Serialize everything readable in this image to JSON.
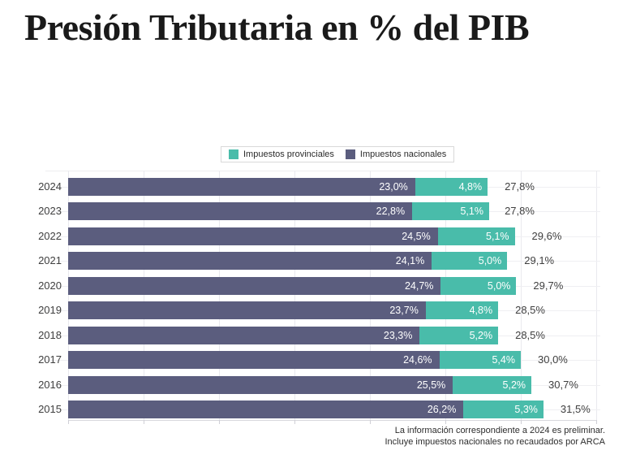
{
  "title": "Presión Tributaria en % del PIB",
  "legend": {
    "items": [
      {
        "label": "Impuestos provinciales",
        "color": "#49bcaa"
      },
      {
        "label": "Impuestos nacionales",
        "color": "#5b5d7e"
      }
    ]
  },
  "footnote": {
    "line1": "La información correspondiente a 2024 es preliminar.",
    "line2": "Incluye impuestos nacionales no recaudados por ARCA"
  },
  "colors": {
    "nacionales": "#5b5d7e",
    "provinciales": "#49bcaa",
    "value_label": "#ffffff",
    "axis_text": "#3f3f3f",
    "gridline": "#e9e9ee"
  },
  "chart_data": {
    "type": "bar",
    "orientation": "horizontal",
    "stacked": true,
    "title": "Presión Tributaria en % del PIB",
    "categories": [
      "2024",
      "2023",
      "2022",
      "2021",
      "2020",
      "2019",
      "2018",
      "2017",
      "2016",
      "2015"
    ],
    "series": [
      {
        "name": "Impuestos nacionales",
        "color": "#5b5d7e",
        "values": [
          23.0,
          22.8,
          24.5,
          24.1,
          24.7,
          23.7,
          23.3,
          24.6,
          25.5,
          26.2
        ],
        "labels": [
          "23,0%",
          "22,8%",
          "24,5%",
          "24,1%",
          "24,7%",
          "23,7%",
          "23,3%",
          "24,6%",
          "25,5%",
          "26,2%"
        ]
      },
      {
        "name": "Impuestos provinciales",
        "color": "#49bcaa",
        "values": [
          4.8,
          5.1,
          5.1,
          5.0,
          5.0,
          4.8,
          5.2,
          5.4,
          5.2,
          5.3
        ],
        "labels": [
          "4,8%",
          "5,1%",
          "5,1%",
          "5,0%",
          "5,0%",
          "4,8%",
          "5,2%",
          "5,4%",
          "5,2%",
          "5,3%"
        ]
      }
    ],
    "totals": [
      27.8,
      27.8,
      29.6,
      29.1,
      29.7,
      28.5,
      28.5,
      30.0,
      30.7,
      31.5
    ],
    "total_labels": [
      "27,8%",
      "27,8%",
      "29,6%",
      "29,1%",
      "29,7%",
      "28,5%",
      "28,5%",
      "30,0%",
      "30,7%",
      "31,5%"
    ],
    "xlim": [
      0,
      35
    ],
    "grid_step": 5,
    "grid": true,
    "legend_position": "top-center",
    "xlabel": "",
    "ylabel": ""
  }
}
